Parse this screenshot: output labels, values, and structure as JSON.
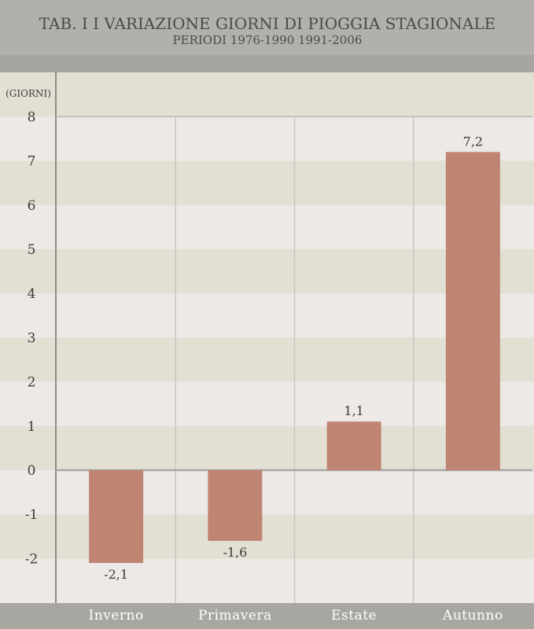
{
  "chart_data": {
    "type": "bar",
    "title": "TAB. I I VARIAZIONE GIORNI DI PIOGGIA STAGIONALE",
    "subtitle": "PERIODI 1976-1990  1991-2006",
    "ylabel": "(GIORNI)",
    "categories": [
      "Inverno",
      "Primavera",
      "Estate",
      "Autunno"
    ],
    "values": [
      -2.1,
      -1.6,
      1.1,
      7.2
    ],
    "value_labels": [
      "-2,1",
      "-1,6",
      "1,1",
      "7,2"
    ],
    "yticks": [
      8,
      7,
      6,
      5,
      4,
      3,
      2,
      1,
      0,
      -1,
      -2
    ],
    "ylim": [
      -3,
      8
    ],
    "grid": true
  },
  "colors": {
    "header_bg": "#b2b0aa",
    "header_band": "#a7a59f",
    "band_dark": "#e2dfd3",
    "band_light": "#ece9e6",
    "bar": "#bf8472",
    "axis_footer": "#a8a6a1",
    "axis_line": "#8e8c88"
  }
}
